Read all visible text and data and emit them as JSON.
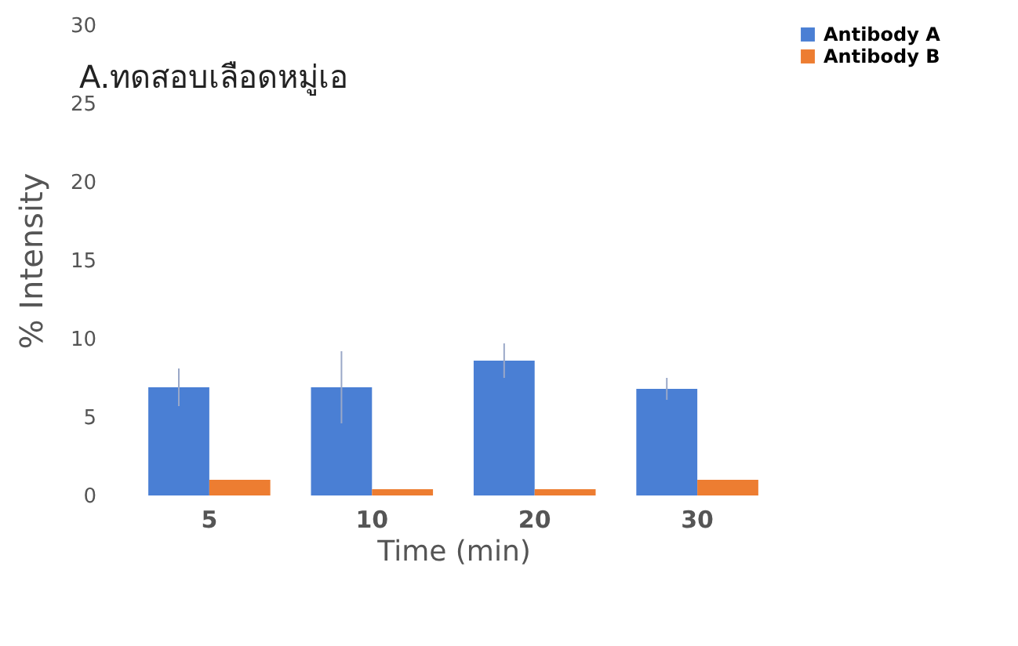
{
  "chart_data": {
    "type": "bar",
    "title": "A.ทดสอบเลือดหมู่เอ",
    "xlabel": "Time (min)",
    "ylabel": "% Intensity",
    "categories": [
      "5",
      "10",
      "20",
      "30"
    ],
    "series": [
      {
        "name": "Antibody A",
        "color": "#4a7fd4",
        "values": [
          6.9,
          6.9,
          8.6,
          6.8
        ],
        "errors": [
          1.2,
          2.3,
          1.1,
          0.7
        ]
      },
      {
        "name": "Antibody B",
        "color": "#ed7d31",
        "values": [
          1.0,
          0.4,
          0.4,
          1.0
        ]
      }
    ],
    "ylim": [
      0,
      30
    ],
    "yticks": [
      0,
      5,
      10,
      15,
      20,
      25,
      30
    ],
    "grid": false,
    "legend": "right"
  }
}
